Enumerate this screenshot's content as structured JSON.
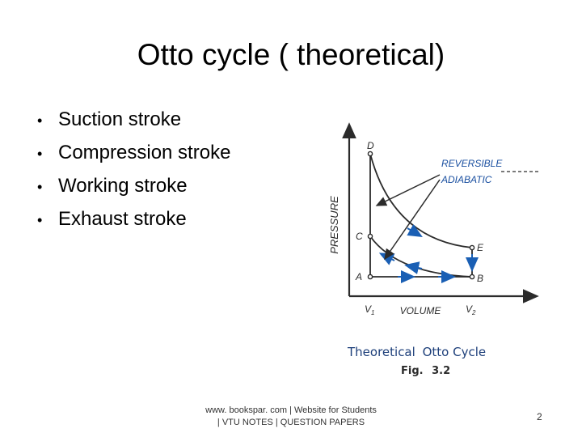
{
  "slide": {
    "title": "Otto cycle ( theoretical)",
    "bullets": [
      "Suction stroke",
      "Compression stroke",
      "Working stroke",
      "Exhaust stroke"
    ],
    "bullet_symbol": "•"
  },
  "figure": {
    "axis_y_label": "PRESSURE",
    "axis_x_label": "VOLUME",
    "annotation_line1": "REVERSIBLE",
    "annotation_line2": "ADIABATIC",
    "points": {
      "D": "D",
      "C": "C",
      "A": "A",
      "B": "B",
      "E": "E"
    },
    "v1_label": "V",
    "v1_sub": "1",
    "v2_label": "V",
    "v2_sub": "2",
    "caption_part1": "Theoretical",
    "caption_part2": "Otto",
    "caption_part3": "Cycle",
    "fig_label": "Fig.",
    "fig_number": "3.2",
    "colors": {
      "line": "#2b2b2b",
      "arrow": "#1a5fb4",
      "annotation": "#1a4fa0",
      "caption": "#1d3f7a"
    }
  },
  "footer": {
    "line1": "www. bookspar. com | Website for Students",
    "line2": "| VTU NOTES | QUESTION PAPERS"
  },
  "page_number": "2"
}
